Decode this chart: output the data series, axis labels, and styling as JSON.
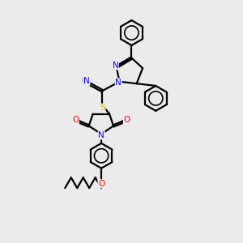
{
  "bg_color": "#ebebeb",
  "atom_colors": {
    "N": "#0000FF",
    "O": "#FF0000",
    "S": "#CCCC00",
    "C": "#000000",
    "H": "#707070"
  },
  "bond_color": "#000000",
  "bond_width": 1.6,
  "font_size": 7.5
}
